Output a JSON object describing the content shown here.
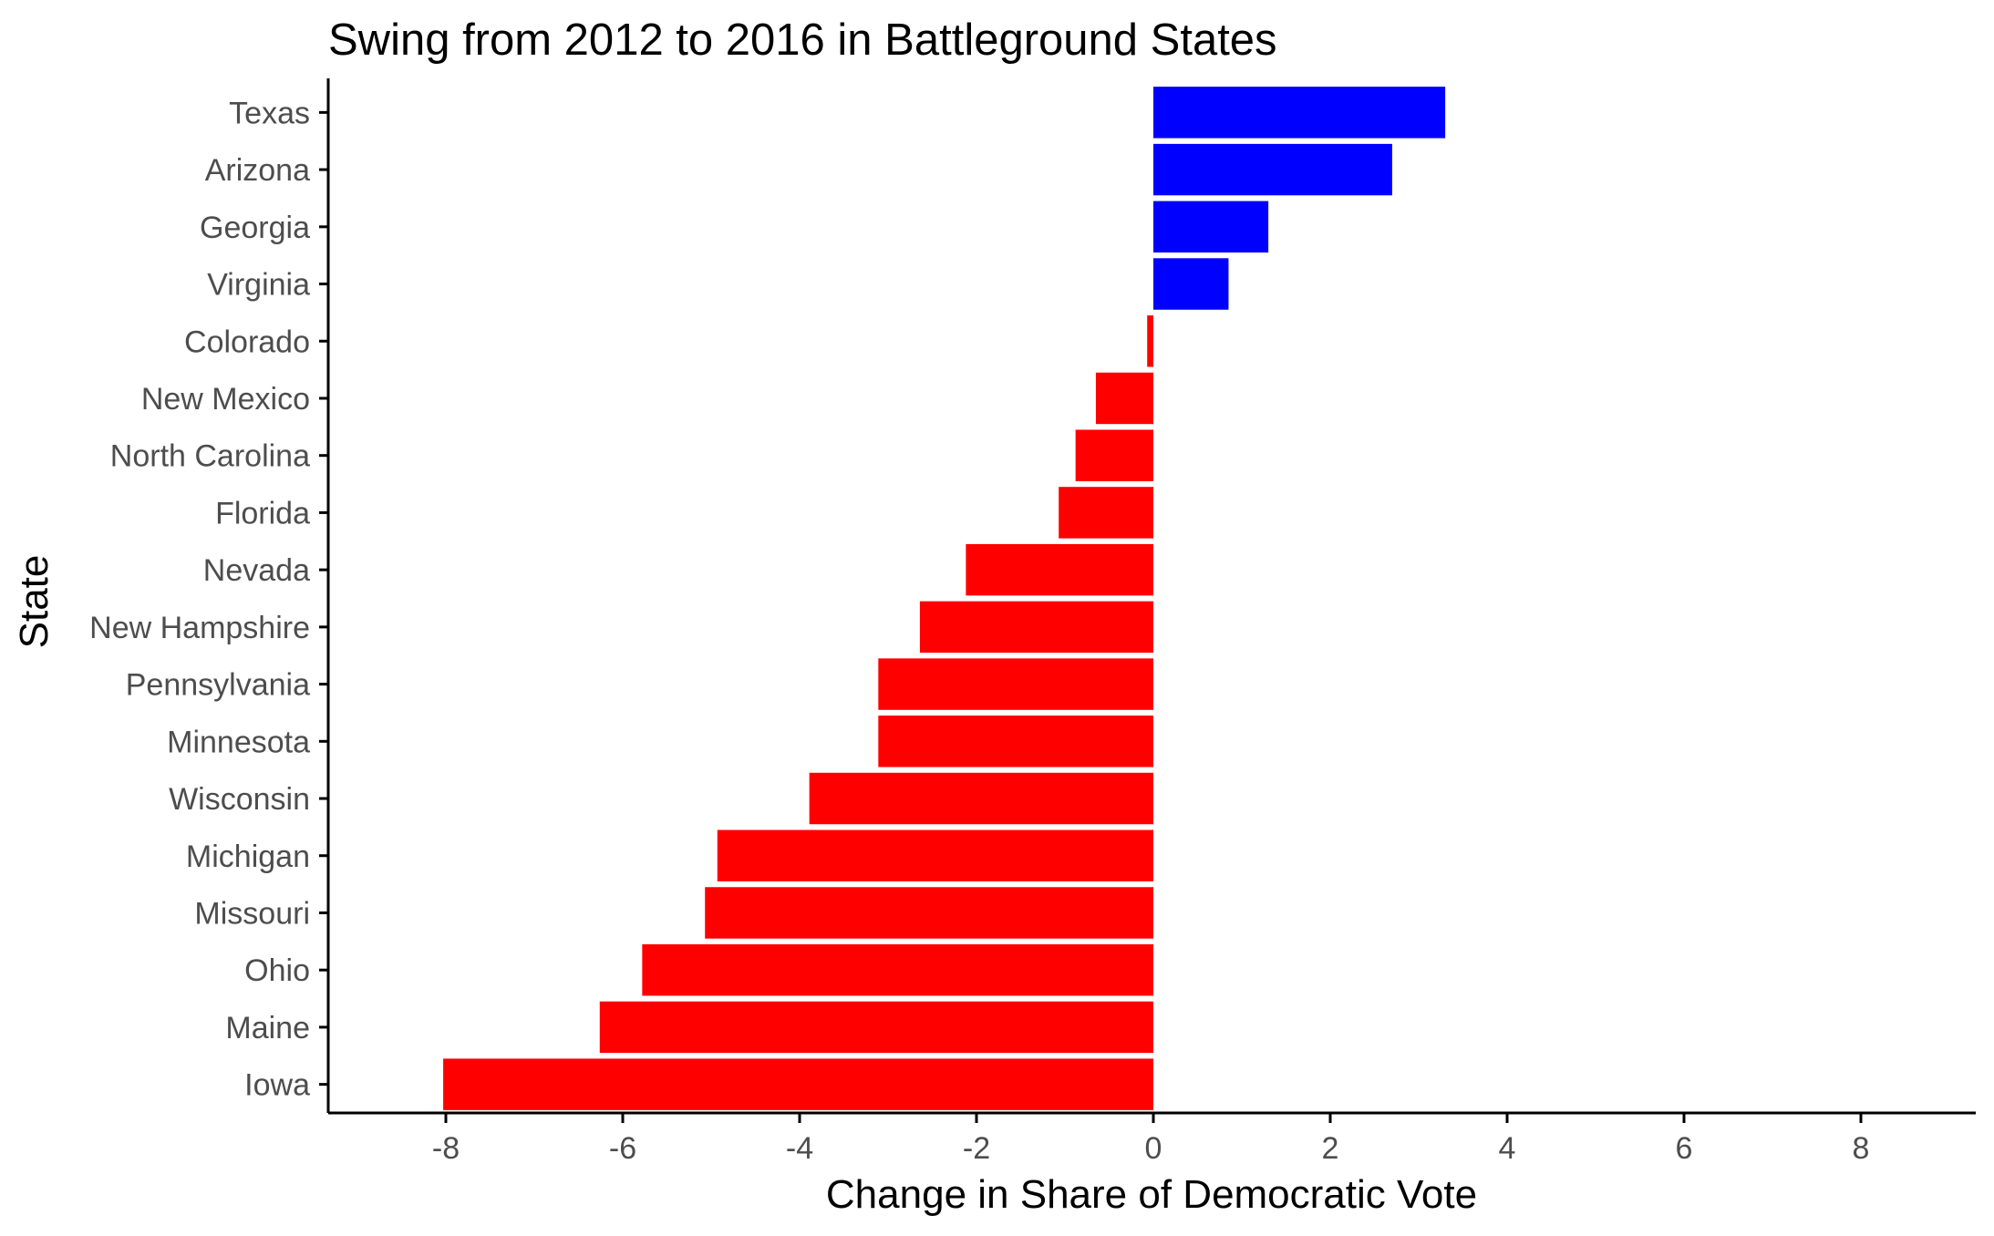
{
  "chart_data": {
    "type": "bar",
    "orientation": "horizontal",
    "title": "Swing from 2012 to 2016 in Battleground States",
    "xlabel": "Change in Share of Democratic Vote",
    "ylabel": "State",
    "xlim": [
      -9.2,
      9.2
    ],
    "xticks": [
      -8,
      -6,
      -4,
      -2,
      0,
      2,
      4,
      6,
      8
    ],
    "xtick_labels": [
      "-8",
      "-6",
      "-4",
      "-2",
      "0",
      "2",
      "4",
      "6",
      "8"
    ],
    "grid": false,
    "legend": "none",
    "colors": {
      "positive": "#0000ff",
      "negative": "#ff0000",
      "axis": "#000000",
      "tick_text": "#4d4d4d"
    },
    "categories": [
      "Texas",
      "Arizona",
      "Georgia",
      "Virginia",
      "Colorado",
      "New Mexico",
      "North Carolina",
      "Florida",
      "Nevada",
      "New Hampshire",
      "Pennsylvania",
      "Minnesota",
      "Wisconsin",
      "Michigan",
      "Missouri",
      "Ohio",
      "Maine",
      "Iowa"
    ],
    "values": [
      3.3,
      2.7,
      1.3,
      0.85,
      -0.07,
      -0.65,
      -0.88,
      -1.07,
      -2.12,
      -2.64,
      -3.11,
      -3.11,
      -3.89,
      -4.93,
      -5.07,
      -5.78,
      -6.26,
      -8.03
    ]
  }
}
